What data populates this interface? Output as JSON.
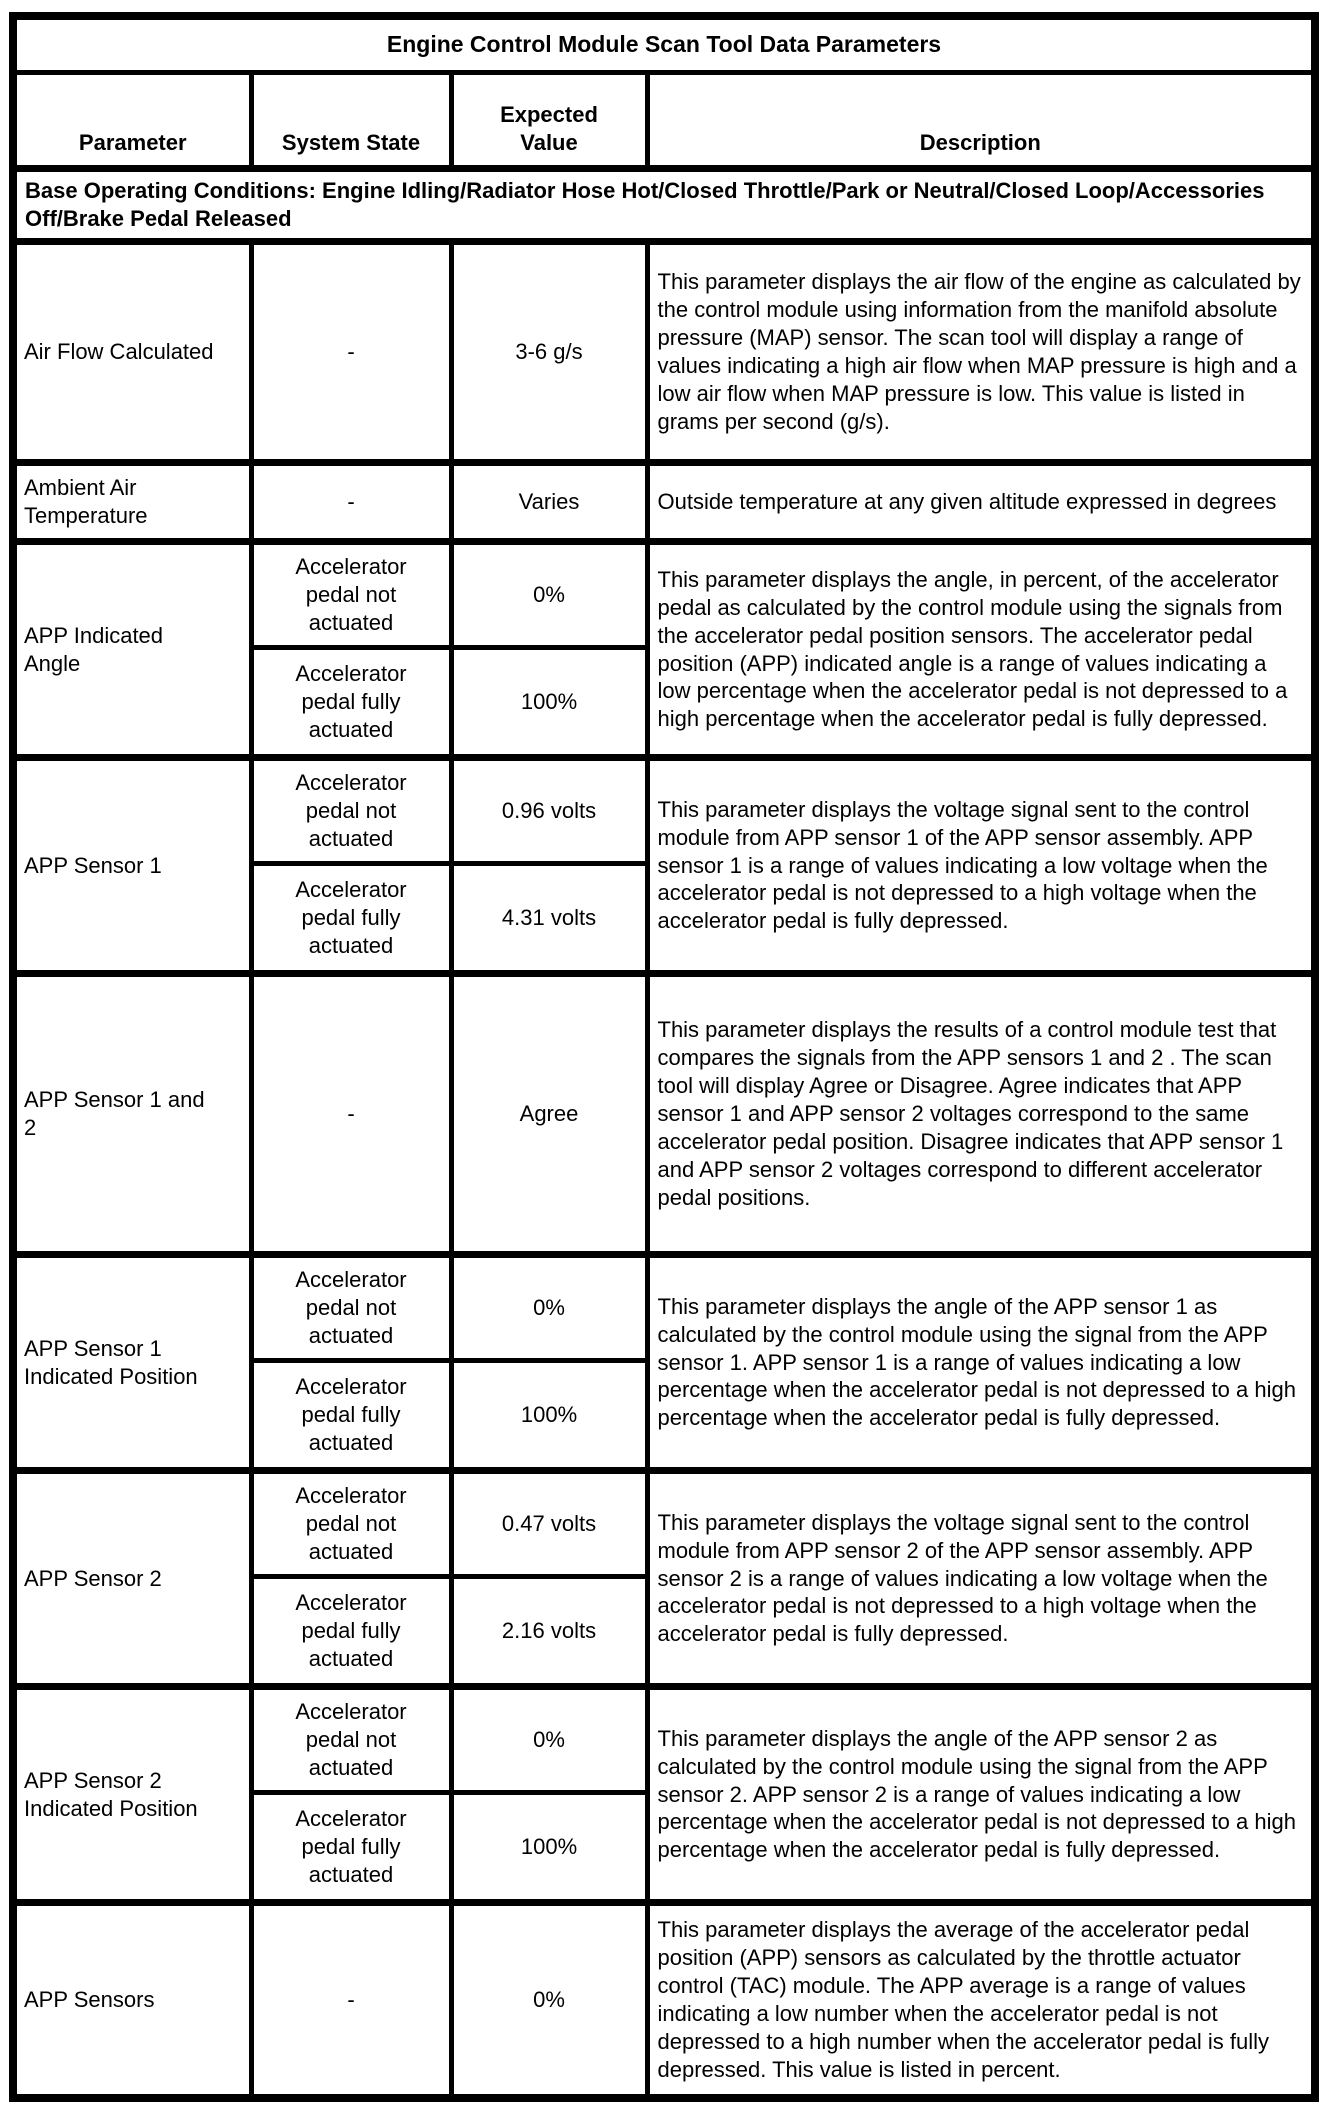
{
  "title": "Engine Control Module Scan Tool Data Parameters",
  "columns": {
    "parameter": "Parameter",
    "system_state": "System State",
    "expected_value": "Expected Value",
    "description": "Description"
  },
  "conditions": "Base Operating Conditions: Engine Idling/Radiator Hose Hot/Closed Throttle/Park or Neutral/Closed Loop/Accessories Off/Brake Pedal Released",
  "colors": {
    "border": "#000000",
    "background": "#ffffff",
    "text": "#000000"
  },
  "rows": [
    {
      "parameter": "Air Flow Calculated",
      "states": [
        {
          "state": "-",
          "value": "3-6 g/s"
        }
      ],
      "description": "This parameter displays the air flow of the engine as calculated by the control module using information from the manifold absolute pressure (MAP) sensor. The scan tool will display a range of values indicating a high air flow when MAP pressure is high and a low air flow when MAP pressure is low. This value is listed in grams per second (g/s)."
    },
    {
      "parameter": "Ambient Air Temperature",
      "states": [
        {
          "state": "-",
          "value": "Varies"
        }
      ],
      "description": "Outside temperature at any given altitude expressed in degrees"
    },
    {
      "parameter": "APP Indicated Angle",
      "states": [
        {
          "state": "Accelerator pedal not actuated",
          "value": "0%"
        },
        {
          "state": "Accelerator pedal fully actuated",
          "value": "100%"
        }
      ],
      "description": "This parameter displays the angle, in percent, of the accelerator pedal as calculated by the control module using the signals from the accelerator pedal position sensors. The accelerator pedal position (APP) indicated angle is a range of values indicating a low percentage when the accelerator pedal is not depressed to a high percentage when the accelerator pedal is fully depressed."
    },
    {
      "parameter": "APP Sensor 1",
      "states": [
        {
          "state": "Accelerator pedal not actuated",
          "value": "0.96 volts"
        },
        {
          "state": "Accelerator pedal fully actuated",
          "value": "4.31 volts"
        }
      ],
      "description": "This parameter displays the voltage signal sent to the control module from APP sensor 1 of the APP sensor assembly. APP sensor 1 is a range of values indicating a low voltage when the accelerator pedal is not depressed to a high voltage when the accelerator pedal is fully depressed."
    },
    {
      "parameter": "APP Sensor 1 and 2",
      "states": [
        {
          "state": "-",
          "value": "Agree"
        }
      ],
      "description": "This parameter displays the results of a control module test that compares the signals from the APP sensors 1 and 2 . The scan tool will display Agree or Disagree. Agree indicates that APP sensor 1 and APP sensor 2 voltages correspond to the same accelerator pedal position. Disagree indicates that APP sensor 1 and APP sensor 2 voltages correspond to different accelerator pedal positions."
    },
    {
      "parameter": "APP Sensor 1 Indicated Position",
      "states": [
        {
          "state": "Accelerator pedal not actuated",
          "value": "0%"
        },
        {
          "state": "Accelerator pedal fully actuated",
          "value": "100%"
        }
      ],
      "description": "This parameter displays the angle of the APP sensor 1 as calculated by the control module using the signal from the APP sensor 1. APP sensor 1 is a range of values indicating a low percentage when the accelerator pedal is not depressed to a high percentage when the accelerator pedal is fully depressed."
    },
    {
      "parameter": "APP Sensor 2",
      "states": [
        {
          "state": "Accelerator pedal not actuated",
          "value": "0.47 volts"
        },
        {
          "state": "Accelerator pedal fully actuated",
          "value": "2.16 volts"
        }
      ],
      "description": "This parameter displays the voltage signal sent to the control module from APP sensor 2 of the APP sensor assembly. APP sensor 2 is a range of values indicating a low voltage when the accelerator pedal is not depressed to a high voltage when the accelerator pedal is fully depressed."
    },
    {
      "parameter": "APP Sensor 2 Indicated Position",
      "states": [
        {
          "state": "Accelerator pedal not actuated",
          "value": "0%"
        },
        {
          "state": "Accelerator pedal fully actuated",
          "value": "100%"
        }
      ],
      "description": "This parameter displays the angle of the APP sensor 2 as calculated by the control module using the signal from the APP sensor 2. APP sensor 2 is a range of values indicating a low percentage when the accelerator pedal is not depressed to a high percentage when the accelerator pedal is fully depressed."
    },
    {
      "parameter": "APP Sensors",
      "states": [
        {
          "state": "-",
          "value": "0%"
        }
      ],
      "description": "This parameter displays the average of the accelerator pedal position (APP) sensors as calculated by the throttle actuator control (TAC) module. The APP average is a range of values indicating a low number when the accelerator pedal is not depressed to a high number when the accelerator pedal is fully depressed. This value is listed in percent."
    }
  ]
}
